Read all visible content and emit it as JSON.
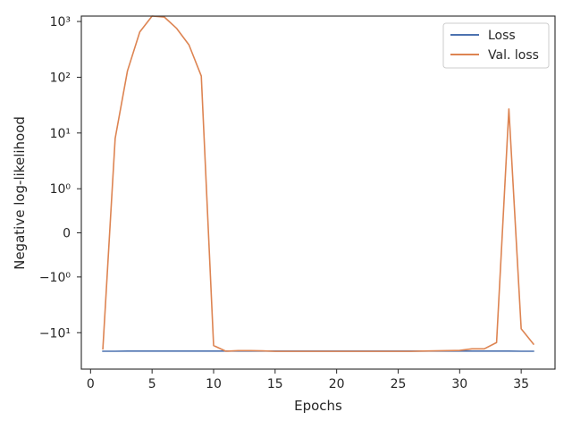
{
  "chart_data": {
    "type": "line",
    "xlabel": "Epochs",
    "ylabel": "Negative log-likelihood",
    "y_scale": "symlog",
    "xlim": [
      -0.75,
      37.75
    ],
    "x_ticks": [
      0,
      5,
      10,
      15,
      20,
      25,
      30,
      35
    ],
    "y_ticks": [
      {
        "value": -10,
        "label": "−10¹"
      },
      {
        "value": -1,
        "label": "−10⁰"
      },
      {
        "value": 0,
        "label": "0"
      },
      {
        "value": 1,
        "label": "10⁰"
      },
      {
        "value": 10,
        "label": "10¹"
      },
      {
        "value": 100,
        "label": "10²"
      },
      {
        "value": 1000,
        "label": "10³"
      }
    ],
    "grid": false,
    "legend_position": "top-right",
    "x": [
      1,
      2,
      3,
      4,
      5,
      6,
      7,
      8,
      9,
      10,
      11,
      12,
      13,
      14,
      15,
      16,
      17,
      18,
      19,
      20,
      21,
      22,
      23,
      24,
      25,
      26,
      27,
      28,
      29,
      30,
      31,
      32,
      33,
      34,
      35,
      36
    ],
    "series": [
      {
        "name": "Loss",
        "color": "#4c72b0",
        "values": [
          -21.5,
          -21.5,
          -21.4,
          -21.4,
          -21.4,
          -21.4,
          -21.4,
          -21.4,
          -21.4,
          -21.4,
          -21.4,
          -21.4,
          -21.4,
          -21.4,
          -21.4,
          -21.4,
          -21.4,
          -21.4,
          -21.4,
          -21.4,
          -21.4,
          -21.4,
          -21.4,
          -21.4,
          -21.4,
          -21.4,
          -21.4,
          -21.4,
          -21.4,
          -21.4,
          -21.4,
          -21.4,
          -21.4,
          -21.4,
          -21.5,
          -21.5
        ]
      },
      {
        "name": "Val. loss",
        "color": "#dd8452",
        "values": [
          -19.5,
          8,
          130,
          650,
          1250,
          1200,
          750,
          380,
          105,
          -17,
          -21.5,
          -21,
          -21,
          -21.2,
          -21.6,
          -21.6,
          -21.6,
          -21.6,
          -21.6,
          -21.6,
          -21.6,
          -21.6,
          -21.6,
          -21.6,
          -21.6,
          -21.6,
          -21.4,
          -21.2,
          -21,
          -20.8,
          -19.5,
          -19.5,
          -15,
          27,
          -8.5,
          -16
        ]
      }
    ]
  }
}
